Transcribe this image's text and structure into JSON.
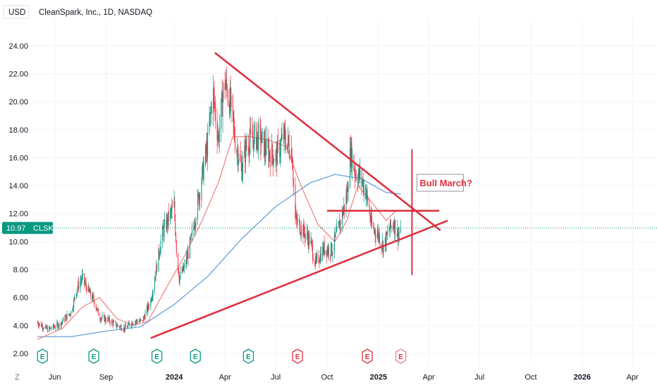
{
  "header": {
    "currency": "USD",
    "title": "CleanSpark, Inc., 1D, NASDAQ"
  },
  "colors": {
    "candle_up": "#089981",
    "candle_down": "#f23645",
    "ma_fast": "#f08080",
    "ma_slow": "#5b9bd5",
    "trendline": "#e0303f",
    "price_line": "#089981",
    "grid": "#f0f3fa"
  },
  "price_badge": {
    "price": "10.97",
    "symbol": "CLSK"
  },
  "annotation": "Bull March?",
  "earnings_marker_label": "E",
  "z_label": "Z",
  "chart_data": {
    "type": "candlestick",
    "title": "CleanSpark, Inc., 1D, NASDAQ",
    "ylabel": "USD",
    "ylim": [
      2,
      25
    ],
    "xlim": [
      "2023-04-22",
      "2026-05-15"
    ],
    "y_ticks": [
      "2.00",
      "4.00",
      "6.00",
      "8.00",
      "10.00",
      "12.00",
      "14.00",
      "16.00",
      "18.00",
      "20.00",
      "22.00",
      "24.00"
    ],
    "x_ticks": [
      {
        "label": "Jun",
        "date": "2023-06-01"
      },
      {
        "label": "Sep",
        "date": "2023-09-01"
      },
      {
        "label": "2024",
        "date": "2024-01-01",
        "bold": true
      },
      {
        "label": "Apr",
        "date": "2024-04-01"
      },
      {
        "label": "Jul",
        "date": "2024-07-01"
      },
      {
        "label": "Oct",
        "date": "2024-10-01"
      },
      {
        "label": "2025",
        "date": "2025-01-01",
        "bold": true
      },
      {
        "label": "Apr",
        "date": "2025-04-01"
      },
      {
        "label": "Jul",
        "date": "2025-07-01"
      },
      {
        "label": "Oct",
        "date": "2025-10-01"
      },
      {
        "label": "2026",
        "date": "2026-01-01",
        "bold": true
      },
      {
        "label": "Apr",
        "date": "2026-04-01"
      }
    ],
    "price_path": [
      [
        "2023-05-01",
        4.2
      ],
      [
        "2023-05-20",
        3.7
      ],
      [
        "2023-06-10",
        4.1
      ],
      [
        "2023-07-01",
        5.0
      ],
      [
        "2023-07-10",
        6.6
      ],
      [
        "2023-07-20",
        7.4
      ],
      [
        "2023-08-01",
        6.4
      ],
      [
        "2023-08-10",
        5.8
      ],
      [
        "2023-08-20",
        4.6
      ],
      [
        "2023-09-05",
        4.4
      ],
      [
        "2023-09-20",
        4.0
      ],
      [
        "2023-10-05",
        3.8
      ],
      [
        "2023-10-20",
        4.3
      ],
      [
        "2023-11-05",
        4.3
      ],
      [
        "2023-11-20",
        5.8
      ],
      [
        "2023-12-01",
        8.3
      ],
      [
        "2023-12-10",
        10.5
      ],
      [
        "2023-12-20",
        11.5
      ],
      [
        "2024-01-01",
        12.5
      ],
      [
        "2024-01-05",
        9.5
      ],
      [
        "2024-01-10",
        7.4
      ],
      [
        "2024-01-20",
        8.2
      ],
      [
        "2024-02-01",
        10.2
      ],
      [
        "2024-02-15",
        13.5
      ],
      [
        "2024-03-01",
        17.0
      ],
      [
        "2024-03-10",
        20.8
      ],
      [
        "2024-03-20",
        17.4
      ],
      [
        "2024-03-31",
        21.5
      ],
      [
        "2024-04-10",
        20.0
      ],
      [
        "2024-04-20",
        17.0
      ],
      [
        "2024-05-01",
        15.2
      ],
      [
        "2024-05-10",
        17.0
      ],
      [
        "2024-05-20",
        17.4
      ],
      [
        "2024-06-01",
        17.5
      ],
      [
        "2024-06-15",
        16.5
      ],
      [
        "2024-07-01",
        16.0
      ],
      [
        "2024-07-15",
        17.5
      ],
      [
        "2024-07-30",
        16.5
      ],
      [
        "2024-08-05",
        11.6
      ],
      [
        "2024-08-15",
        11.0
      ],
      [
        "2024-09-01",
        10.0
      ],
      [
        "2024-09-10",
        8.4
      ],
      [
        "2024-09-25",
        9.5
      ],
      [
        "2024-10-10",
        9.4
      ],
      [
        "2024-10-25",
        11.5
      ],
      [
        "2024-11-05",
        13.2
      ],
      [
        "2024-11-12",
        16.5
      ],
      [
        "2024-11-20",
        15.0
      ],
      [
        "2024-12-01",
        14.5
      ],
      [
        "2024-12-10",
        13.5
      ],
      [
        "2024-12-20",
        11.0
      ],
      [
        "2025-01-01",
        10.5
      ],
      [
        "2025-01-10",
        9.6
      ],
      [
        "2025-01-20",
        10.8
      ],
      [
        "2025-01-28",
        11.4
      ],
      [
        "2025-02-05",
        10.5
      ],
      [
        "2025-02-10",
        10.97
      ]
    ],
    "trendlines": [
      {
        "name": "descending",
        "from": [
          "2024-03-14",
          23.5
        ],
        "to": [
          "2025-04-22",
          10.8
        ]
      },
      {
        "name": "ascending",
        "from": [
          "2023-11-20",
          3.1
        ],
        "to": [
          "2025-05-05",
          11.5
        ]
      },
      {
        "name": "horizontal",
        "from": [
          "2024-10-01",
          12.2
        ],
        "to": [
          "2025-04-20",
          12.2
        ]
      },
      {
        "name": "vertical",
        "from": [
          "2025-03-02",
          7.6
        ],
        "to": [
          "2025-03-02",
          16.6
        ]
      }
    ],
    "ma_fast": [
      [
        "2023-05-01",
        3.0
      ],
      [
        "2023-06-15",
        3.8
      ],
      [
        "2023-07-20",
        5.3
      ],
      [
        "2023-08-20",
        6.0
      ],
      [
        "2023-09-20",
        4.5
      ],
      [
        "2023-10-20",
        4.0
      ],
      [
        "2023-11-15",
        4.3
      ],
      [
        "2023-12-15",
        6.5
      ],
      [
        "2024-01-20",
        9.0
      ],
      [
        "2024-02-20",
        11.5
      ],
      [
        "2024-03-20",
        14.2
      ],
      [
        "2024-04-15",
        17.5
      ],
      [
        "2024-05-15",
        17.5
      ],
      [
        "2024-06-15",
        17.3
      ],
      [
        "2024-07-20",
        16.8
      ],
      [
        "2024-08-15",
        14.0
      ],
      [
        "2024-09-15",
        11.2
      ],
      [
        "2024-10-15",
        10.0
      ],
      [
        "2024-11-05",
        11.5
      ],
      [
        "2024-11-25",
        14.0
      ],
      [
        "2024-12-20",
        12.8
      ],
      [
        "2025-01-15",
        11.5
      ],
      [
        "2025-02-01",
        12.2
      ]
    ],
    "ma_slow": [
      [
        "2023-05-01",
        3.2
      ],
      [
        "2023-07-01",
        3.2
      ],
      [
        "2023-09-01",
        3.6
      ],
      [
        "2023-11-01",
        3.9
      ],
      [
        "2024-01-01",
        5.5
      ],
      [
        "2024-03-01",
        7.5
      ],
      [
        "2024-05-01",
        10.2
      ],
      [
        "2024-07-01",
        12.5
      ],
      [
        "2024-09-01",
        14.2
      ],
      [
        "2024-10-15",
        14.8
      ],
      [
        "2024-12-01",
        14.5
      ],
      [
        "2025-01-15",
        13.5
      ],
      [
        "2025-02-10",
        13.4
      ]
    ],
    "earnings_dates": [
      {
        "date": "2023-05-10",
        "type": "up"
      },
      {
        "date": "2023-08-10",
        "type": "up"
      },
      {
        "date": "2023-12-01",
        "type": "up"
      },
      {
        "date": "2024-02-08",
        "type": "up"
      },
      {
        "date": "2024-05-13",
        "type": "up"
      },
      {
        "date": "2024-08-09",
        "type": "down"
      },
      {
        "date": "2024-12-12",
        "type": "down"
      },
      {
        "date": "2025-02-10",
        "type": "down"
      }
    ],
    "current_price": 10.97
  }
}
